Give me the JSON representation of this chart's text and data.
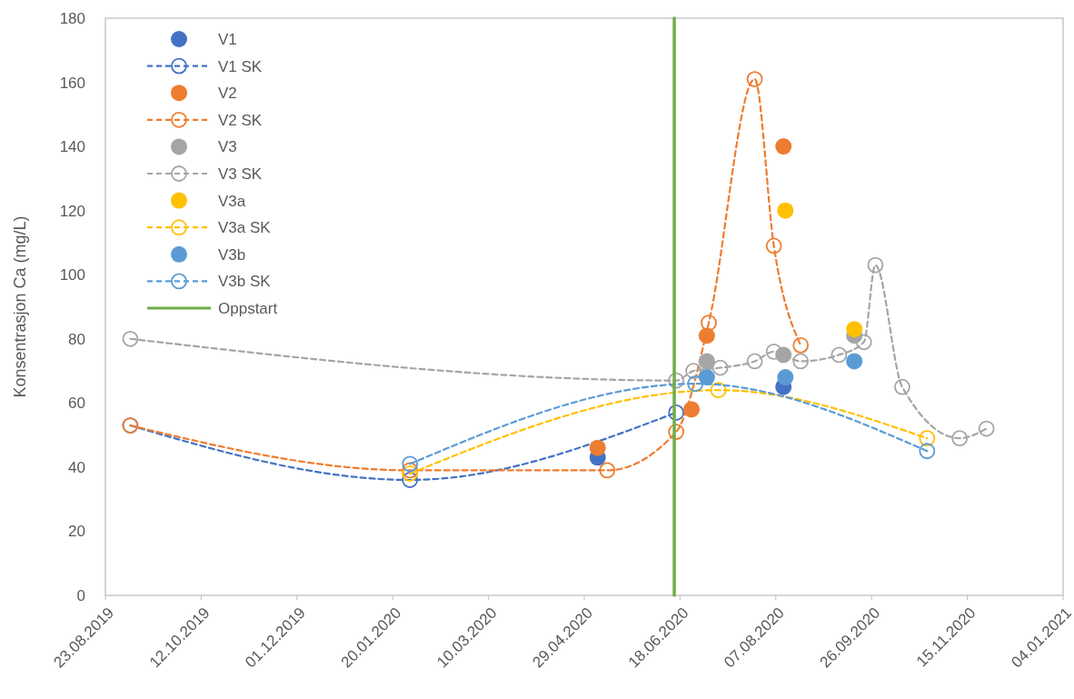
{
  "chart_data": {
    "type": "line",
    "ylabel": "Konsentrasjon Ca (mg/L)",
    "xlim": [
      "2019-08-23",
      "2021-01-04"
    ],
    "xticks": [
      {
        "value": "2019-08-23",
        "label": "23.08.2019"
      },
      {
        "value": "2019-10-12",
        "label": "12.10.2019"
      },
      {
        "value": "2019-12-01",
        "label": "01.12.2019"
      },
      {
        "value": "2020-01-20",
        "label": "20.01.2020"
      },
      {
        "value": "2020-03-10",
        "label": "10.03.2020"
      },
      {
        "value": "2020-04-29",
        "label": "29.04.2020"
      },
      {
        "value": "2020-06-18",
        "label": "18.06.2020"
      },
      {
        "value": "2020-08-07",
        "label": "07.08.2020"
      },
      {
        "value": "2020-09-26",
        "label": "26.09.2020"
      },
      {
        "value": "2020-11-15",
        "label": "15.11.2020"
      },
      {
        "value": "2021-01-04",
        "label": "04.01.2021"
      }
    ],
    "ylim": [
      0,
      180
    ],
    "yticks": [
      0,
      20,
      40,
      60,
      80,
      100,
      120,
      140,
      160,
      180
    ],
    "grid": false,
    "legend": "top left",
    "marker": "circle",
    "series": [
      {
        "name": "V1",
        "color": "#4472c4",
        "type": "scatter",
        "x": [
          "2020-05-06",
          "2020-08-11"
        ],
        "values": [
          43,
          65
        ]
      },
      {
        "name": "V1 SK",
        "color": "#4472c4",
        "type": "line",
        "line_style": "dashed",
        "x": [
          "2019-09-05",
          "2020-01-29",
          "2020-06-16"
        ],
        "values": [
          53,
          36,
          57
        ]
      },
      {
        "name": "V2",
        "color": "#ed7d31",
        "type": "scatter",
        "x": [
          "2020-05-06",
          "2020-06-24",
          "2020-07-02",
          "2020-08-11"
        ],
        "values": [
          46,
          58,
          81,
          140
        ]
      },
      {
        "name": "V2 SK",
        "color": "#ed7d31",
        "type": "line",
        "line_style": "dashed",
        "x": [
          "2019-09-05",
          "2020-01-29",
          "2020-05-11",
          "2020-06-16",
          "2020-07-03",
          "2020-07-27",
          "2020-08-06",
          "2020-08-20"
        ],
        "values": [
          53,
          39,
          39,
          51,
          85,
          161,
          109,
          78
        ]
      },
      {
        "name": "V3",
        "color": "#a5a5a5",
        "type": "scatter",
        "x": [
          "2020-07-02",
          "2020-08-11",
          "2020-09-17"
        ],
        "values": [
          73,
          75,
          81
        ]
      },
      {
        "name": "V3 SK",
        "color": "#a5a5a5",
        "type": "line",
        "line_style": "dashed",
        "x": [
          "2019-09-05",
          "2020-06-16",
          "2020-06-25",
          "2020-07-09",
          "2020-07-27",
          "2020-08-06",
          "2020-08-20",
          "2020-09-09",
          "2020-09-22",
          "2020-09-28",
          "2020-10-12",
          "2020-11-11",
          "2020-11-25"
        ],
        "values": [
          80,
          67,
          70,
          71,
          73,
          76,
          73,
          75,
          79,
          103,
          65,
          49,
          52
        ]
      },
      {
        "name": "V3a",
        "color": "#ffc000",
        "type": "scatter",
        "x": [
          "2020-08-12",
          "2020-09-17"
        ],
        "values": [
          120,
          83
        ]
      },
      {
        "name": "V3a SK",
        "color": "#ffc000",
        "type": "line",
        "line_style": "dashed",
        "x": [
          "2020-01-29",
          "2020-07-08",
          "2020-10-25"
        ],
        "values": [
          38,
          64,
          49
        ]
      },
      {
        "name": "V3b",
        "color": "#5b9bd5",
        "type": "scatter",
        "x": [
          "2020-07-02",
          "2020-08-12",
          "2020-09-17"
        ],
        "values": [
          68,
          68,
          73
        ]
      },
      {
        "name": "V3b SK",
        "color": "#5b9bd5",
        "type": "line",
        "line_style": "dashed",
        "x": [
          "2020-01-29",
          "2020-06-26",
          "2020-10-25"
        ],
        "values": [
          41,
          66,
          45
        ]
      },
      {
        "name": "Oppstart",
        "color": "#70ad47",
        "type": "line",
        "line_style": "solid",
        "marker": "none",
        "x": [
          "2020-06-15",
          "2020-06-15"
        ],
        "values": [
          0,
          180
        ]
      }
    ]
  }
}
